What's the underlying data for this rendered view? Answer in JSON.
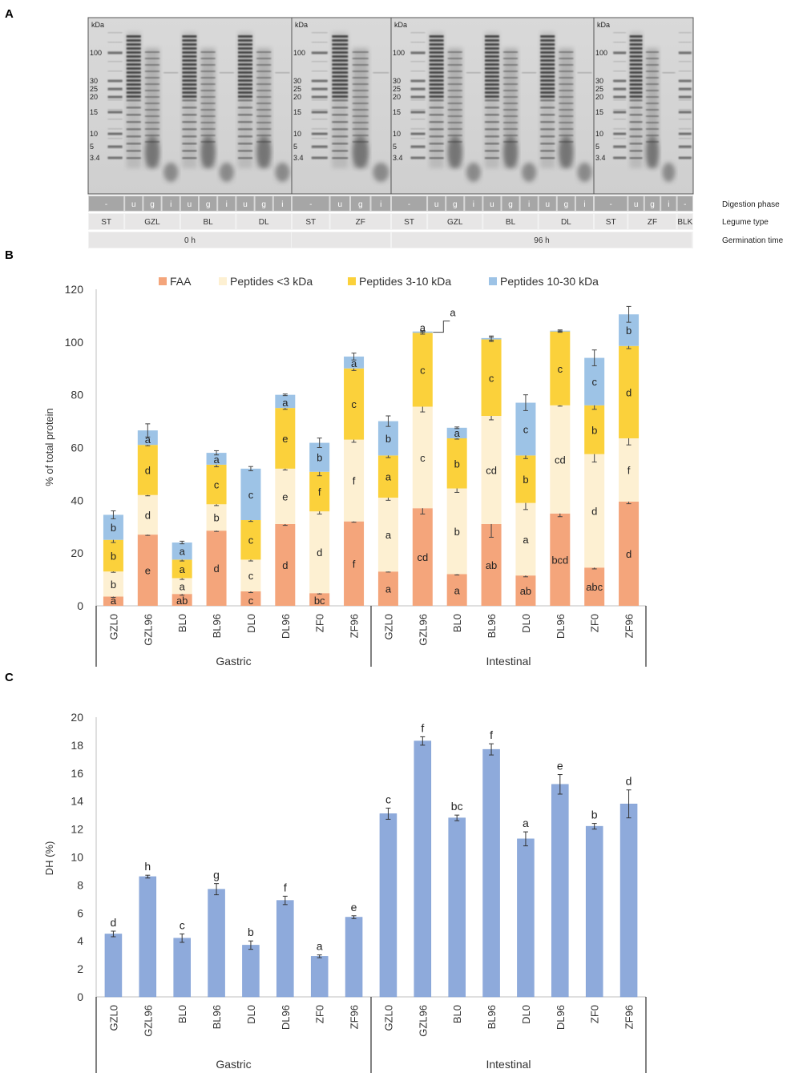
{
  "panel_labels": {
    "a": "A",
    "b": "B",
    "c": "C"
  },
  "gels": {
    "kda_label": "kDa",
    "markers": [
      "100",
      "30",
      "25",
      "20",
      "15",
      "10",
      "5",
      "3.4"
    ],
    "marker_values": [
      100,
      30,
      25,
      20,
      15,
      10,
      5,
      3.4
    ],
    "row_labels": {
      "phase": "Digestion phase",
      "legume": "Legume type",
      "germination": "Germination time"
    },
    "panels": [
      {
        "phases": [
          "-",
          "u",
          "g",
          "i",
          "u",
          "g",
          "i",
          "u",
          "g",
          "i"
        ],
        "legumes": [
          {
            "name": "ST",
            "span": 1
          },
          {
            "name": "GZL",
            "span": 3
          },
          {
            "name": "BL",
            "span": 3
          },
          {
            "name": "DL",
            "span": 3
          }
        ]
      },
      {
        "phases": [
          "-",
          "u",
          "g",
          "i"
        ],
        "legumes": [
          {
            "name": "ST",
            "span": 1
          },
          {
            "name": "ZF",
            "span": 3
          }
        ]
      },
      {
        "phases": [
          "-",
          "u",
          "g",
          "i",
          "u",
          "g",
          "i",
          "u",
          "g",
          "i"
        ],
        "legumes": [
          {
            "name": "ST",
            "span": 1
          },
          {
            "name": "GZL",
            "span": 3
          },
          {
            "name": "BL",
            "span": 3
          },
          {
            "name": "DL",
            "span": 3
          }
        ]
      },
      {
        "phases": [
          "-",
          "u",
          "g",
          "i",
          "-"
        ],
        "legumes": [
          {
            "name": "ST",
            "span": 1
          },
          {
            "name": "ZF",
            "span": 3
          },
          {
            "name": "BLK",
            "span": 1
          }
        ]
      }
    ],
    "germination_times": [
      "0 h",
      "96 h"
    ]
  },
  "chart_data": [
    {
      "type": "bar",
      "stacked": true,
      "title": "",
      "xlabel": "",
      "ylabel": "% of total protein",
      "ylim": [
        0,
        120
      ],
      "yticks": [
        0,
        20,
        40,
        60,
        80,
        100,
        120
      ],
      "categories": [
        "GZL0",
        "GZL96",
        "BL0",
        "BL96",
        "DL0",
        "DL96",
        "ZF0",
        "ZF96",
        "GZL0",
        "GZL96",
        "BL0",
        "BL96",
        "DL0",
        "DL96",
        "ZF0",
        "ZF96"
      ],
      "groups": [
        {
          "name": "Gastric",
          "count": 8
        },
        {
          "name": "Intestinal",
          "count": 8
        }
      ],
      "legend_position": "top",
      "series": [
        {
          "name": "FAA",
          "color": "#f4a57b",
          "values": [
            3.5,
            27,
            4.5,
            28.5,
            5.5,
            31,
            4.8,
            32,
            13,
            37,
            12,
            31,
            11.5,
            35,
            14.5,
            39.5
          ],
          "errors": [
            0.3,
            0.3,
            0.5,
            0.3,
            0.5,
            0.5,
            0.3,
            0.3,
            0.2,
            2.2,
            0.3,
            5,
            0.5,
            1.2,
            0.5,
            0.8
          ],
          "letters": [
            "a",
            "e",
            "ab",
            "d",
            "c",
            "d",
            "bc",
            "f",
            "a",
            "cd",
            "a",
            "ab",
            "ab",
            "bcd",
            "abc",
            "d"
          ]
        },
        {
          "name": "Peptides <3 kDa",
          "color": "#fdf0d2",
          "values": [
            9.5,
            15,
            6,
            10,
            12,
            21,
            31,
            31,
            28,
            38.5,
            32.5,
            41,
            27.5,
            41,
            43,
            24
          ],
          "errors": [
            0.3,
            0.3,
            0.5,
            0.5,
            0.5,
            0.5,
            1,
            1,
            1,
            2,
            1.5,
            1.5,
            2.5,
            0.3,
            3,
            2.5
          ],
          "letters": [
            "b",
            "d",
            "a",
            "b",
            "c",
            "e",
            "d",
            "f",
            "a",
            "c",
            "b",
            "cd",
            "a",
            "cd",
            "d",
            "f"
          ]
        },
        {
          "name": "Peptides 3-10 kDa",
          "color": "#fbd13b",
          "values": [
            12,
            19,
            7,
            15,
            15,
            23,
            15,
            27,
            16,
            28,
            19,
            29,
            18,
            28,
            18.5,
            35
          ],
          "errors": [
            1,
            0.3,
            0.5,
            0.8,
            0.5,
            0.5,
            1.5,
            0.8,
            0.8,
            0.5,
            0.3,
            0.8,
            1.2,
            0.3,
            1.5,
            1
          ],
          "letters": [
            "b",
            "d",
            "a",
            "c",
            "c",
            "e",
            "f",
            "c",
            "a",
            "c",
            "b",
            "c",
            "b",
            "c",
            "b",
            "d"
          ]
        },
        {
          "name": "Peptides 10-30 kDa",
          "color": "#9dc3e6",
          "values": [
            9.5,
            5.5,
            6.5,
            4.5,
            19.5,
            5,
            11,
            4.5,
            13,
            0.5,
            4,
            0.5,
            20,
            0.3,
            18,
            12
          ],
          "errors": [
            1.5,
            2.5,
            0.5,
            0.8,
            0.8,
            0.3,
            1.8,
            1.3,
            2,
            0.3,
            0.3,
            0.8,
            3,
            0.3,
            3,
            3
          ],
          "letters": [
            "b",
            "a",
            "a",
            "a",
            "c",
            "a",
            "b",
            "a",
            "b",
            "a",
            "a",
            "",
            "c",
            "",
            "c",
            "b"
          ]
        }
      ],
      "callout_letter": "a"
    },
    {
      "type": "bar",
      "title": "",
      "xlabel": "",
      "ylabel": "DH (%)",
      "ylim": [
        0,
        20
      ],
      "yticks": [
        0,
        2,
        4,
        6,
        8,
        10,
        12,
        14,
        16,
        18,
        20
      ],
      "color": "#8eaadb",
      "categories": [
        "GZL0",
        "GZL96",
        "BL0",
        "BL96",
        "DL0",
        "DL96",
        "ZF0",
        "ZF96",
        "GZL0",
        "GZL96",
        "BL0",
        "BL96",
        "DL0",
        "DL96",
        "ZF0",
        "ZF96"
      ],
      "groups": [
        {
          "name": "Gastric",
          "count": 8
        },
        {
          "name": "Intestinal",
          "count": 8
        }
      ],
      "values": [
        4.5,
        8.6,
        4.2,
        7.7,
        3.7,
        6.9,
        2.9,
        5.7,
        13.1,
        18.3,
        12.8,
        17.7,
        11.3,
        15.2,
        12.2,
        13.8
      ],
      "errors": [
        0.2,
        0.1,
        0.3,
        0.4,
        0.3,
        0.3,
        0.1,
        0.1,
        0.4,
        0.3,
        0.2,
        0.4,
        0.5,
        0.7,
        0.2,
        1.0
      ],
      "letters": [
        "d",
        "h",
        "c",
        "g",
        "b",
        "f",
        "a",
        "e",
        "c",
        "f",
        "bc",
        "f",
        "a",
        "e",
        "b",
        "d"
      ]
    }
  ]
}
